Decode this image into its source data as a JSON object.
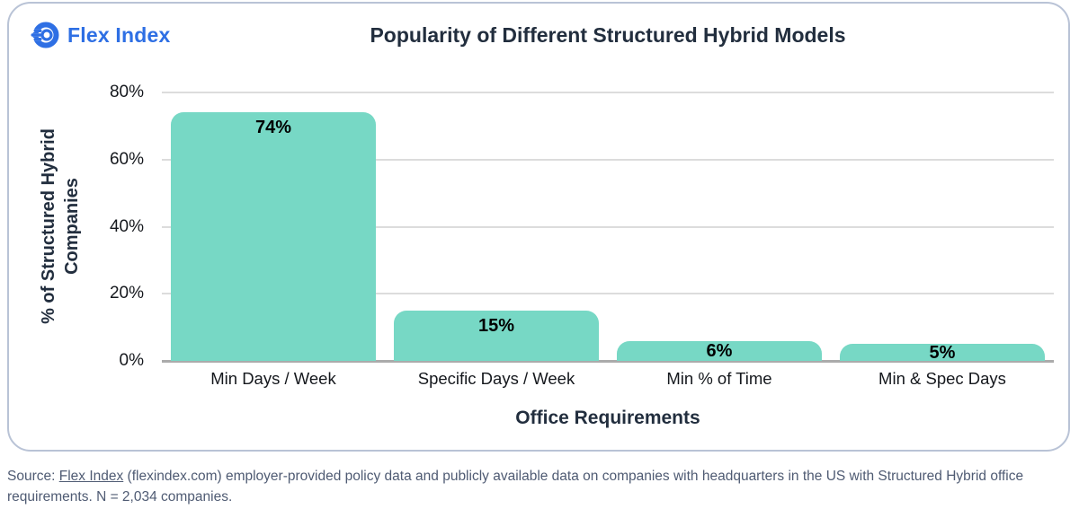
{
  "logo": {
    "text": "Flex Index",
    "color": "#2e6fe4"
  },
  "chart_data": {
    "type": "bar",
    "title": "Popularity of Different Structured Hybrid Models",
    "categories": [
      "Min Days / Week",
      "Specific Days / Week",
      "Min % of Time",
      "Min & Spec Days"
    ],
    "values": [
      74,
      15,
      6,
      5
    ],
    "value_labels": [
      "74%",
      "15%",
      "6%",
      "5%"
    ],
    "xlabel": "Office Requirements",
    "ylabel": "% of Structured Hybrid Companies",
    "ylim": [
      0,
      80
    ],
    "yticks": [
      0,
      20,
      40,
      60,
      80
    ],
    "ytick_labels": [
      "0%",
      "20%",
      "40%",
      "60%",
      "80%"
    ],
    "grid": true,
    "legend": "none",
    "bar_color": "#77d8c5",
    "gridline_color": "#dcdcdc",
    "axis_line_color": "#ababab"
  },
  "source": {
    "prefix": "Source: ",
    "link_text": "Flex Index",
    "text_after": " (flexindex.com) employer-provided policy data and publicly available data on companies with headquarters in the US with Structured Hybrid office requirements. N = 2,034 companies."
  }
}
